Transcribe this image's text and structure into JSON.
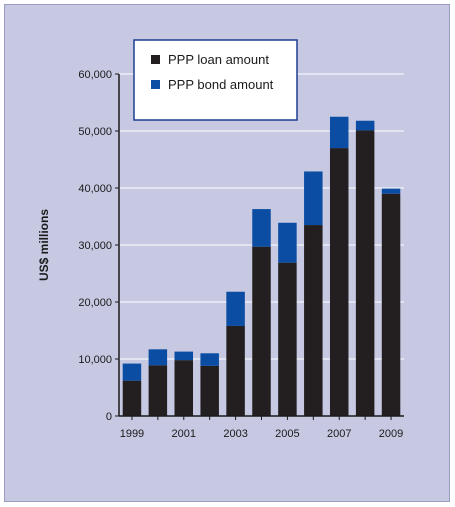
{
  "chart_data": {
    "type": "bar",
    "stacked": true,
    "title": "",
    "xlabel": "",
    "ylabel": "US$ millions",
    "ylim": [
      0,
      60000
    ],
    "yticks": [
      0,
      10000,
      20000,
      30000,
      40000,
      50000,
      60000
    ],
    "ytick_labels": [
      "0",
      "10,000",
      "20,000",
      "30,000",
      "40,000",
      "50,000",
      "60,000"
    ],
    "categories": [
      "1999",
      "2000",
      "2001",
      "2002",
      "2003",
      "2004",
      "2005",
      "2006",
      "2007",
      "2008",
      "2009"
    ],
    "xtick_labels": [
      "1999",
      "",
      "2001",
      "",
      "2003",
      "",
      "2005",
      "",
      "2007",
      "",
      "2009"
    ],
    "series": [
      {
        "name": "PPP loan amount",
        "color": "#231f20",
        "values": [
          6200,
          8900,
          9800,
          8800,
          15800,
          29700,
          26900,
          33500,
          47000,
          50100,
          39000
        ]
      },
      {
        "name": "PPP bond amount",
        "color": "#0a4da2",
        "values": [
          3000,
          2800,
          1500,
          2200,
          6000,
          6600,
          7000,
          9400,
          5500,
          1700,
          900
        ]
      }
    ],
    "grid": true,
    "legend": "top-left"
  }
}
